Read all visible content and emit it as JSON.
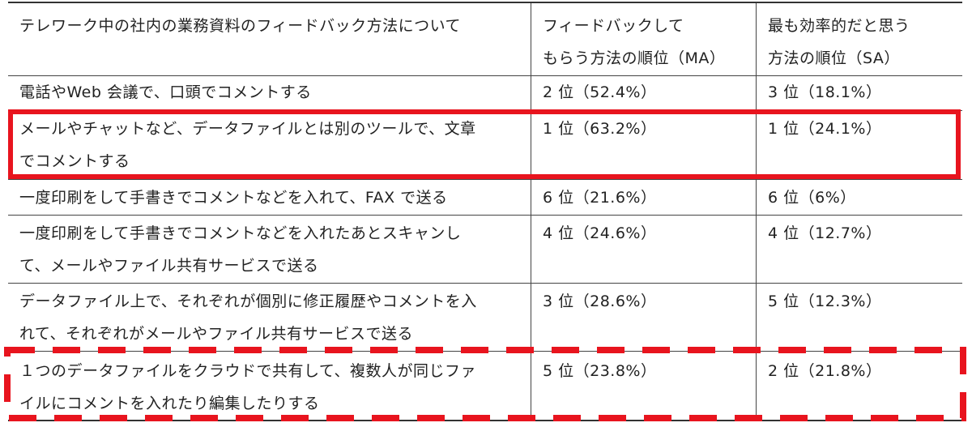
{
  "table": {
    "header": {
      "col1": "テレワーク中の社内の業務資料のフィードバック方法について",
      "col2": "フィードバックして\nもらう方法の順位（MA）",
      "col3": "最も効率的だと思う\n方法の順位（SA）"
    },
    "rows": [
      {
        "method": "電話やWeb 会議で、口頭でコメントする",
        "ma": "2 位（52.4%）",
        "sa": "3 位（18.1%）"
      },
      {
        "method": "メールやチャットなど、データファイルとは別のツールで、文章\nでコメントする",
        "ma": "1 位（63.2%）",
        "sa": "1 位（24.1%）"
      },
      {
        "method": "一度印刷をして手書きでコメントなどを入れて、FAX で送る",
        "ma": "6 位（21.6%）",
        "sa": "6 位（6%）"
      },
      {
        "method": "一度印刷をして手書きでコメントなどを入れたあとスキャンし\nて、メールやファイル共有サービスで送る",
        "ma": "4 位（24.6%）",
        "sa": "4 位（12.7%）"
      },
      {
        "method": "データファイル上で、それぞれが個別に修正履歴やコメントを入\nれて、それぞれがメールやファイル共有サービスで送る",
        "ma": "3 位（28.6%）",
        "sa": "5 位（12.3%）"
      },
      {
        "method": "１つのデータファイルをクラウドで共有して、複数人が同じファ\nイルにコメントを入れたり編集したりする",
        "ma": "5 位（23.8%）",
        "sa": "2 位（21.8%）"
      }
    ]
  },
  "highlights": {
    "solid_color": "#e8141e",
    "dashed_color": "#e8141e"
  }
}
